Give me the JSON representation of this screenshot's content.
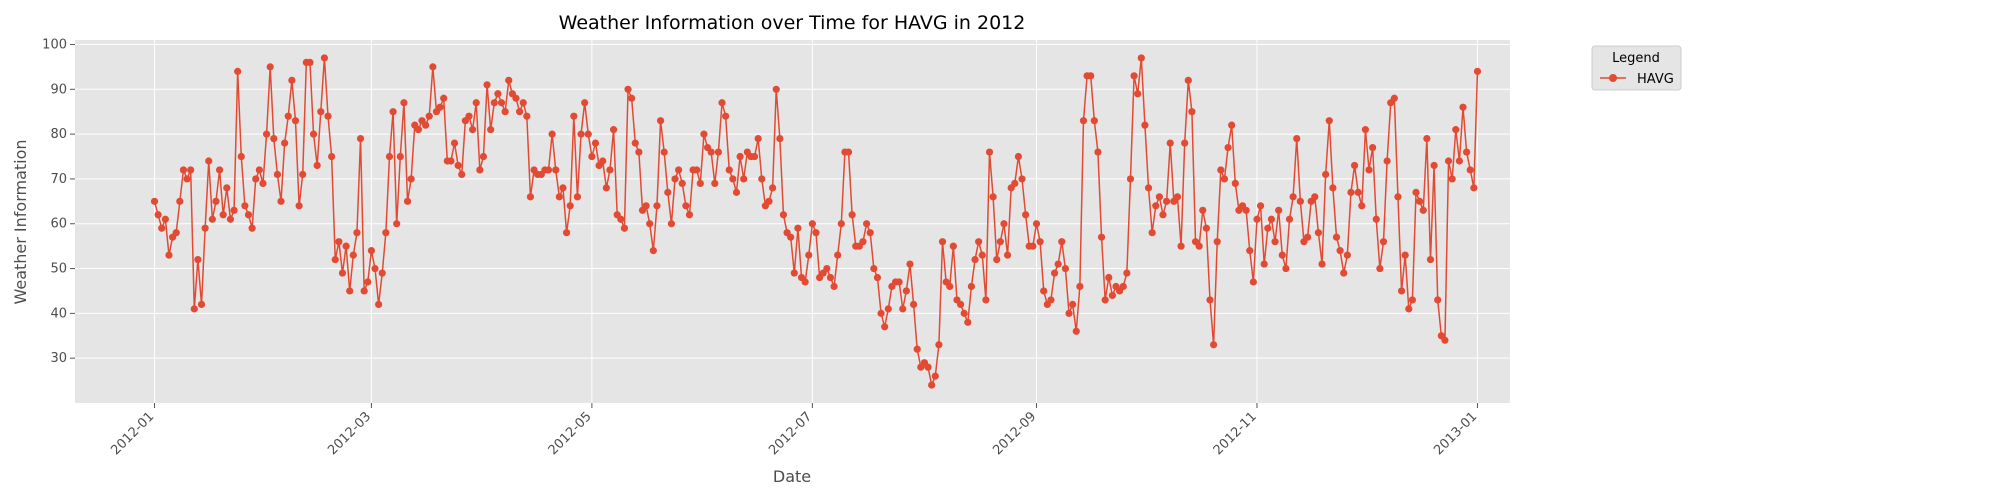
{
  "chart_data": {
    "type": "line",
    "title": "Weather Information over Time for HAVG in 2012",
    "xlabel": "Date",
    "ylabel": "Weather Information",
    "x_range": [
      "2011-12-10",
      "2013-01-10"
    ],
    "ylim": [
      20,
      101
    ],
    "y_ticks": [
      30,
      40,
      50,
      60,
      70,
      80,
      90,
      100
    ],
    "x_ticks": [
      "2012-01-01",
      "2012-03-01",
      "2012-05-01",
      "2012-07-01",
      "2012-09-01",
      "2012-11-01",
      "2013-01-01"
    ],
    "x_tick_labels": [
      "2012-01",
      "2012-03",
      "2012-05",
      "2012-07",
      "2012-09",
      "2012-11",
      "2013-01"
    ],
    "grid": true,
    "background": "#e5e5e5",
    "legend": {
      "title": "Legend",
      "position": "outside-top-right"
    },
    "series": [
      {
        "name": "HAVG",
        "color": "#e24a33",
        "marker": "circle",
        "start_date": "2012-01-01",
        "step_days": 1,
        "values": [
          65,
          62,
          59,
          61,
          53,
          57,
          58,
          65,
          72,
          70,
          72,
          41,
          52,
          42,
          59,
          74,
          61,
          65,
          72,
          62,
          68,
          61,
          63,
          94,
          75,
          64,
          62,
          59,
          70,
          72,
          69,
          80,
          95,
          79,
          71,
          65,
          78,
          84,
          92,
          83,
          64,
          71,
          96,
          96,
          80,
          73,
          85,
          97,
          84,
          75,
          52,
          56,
          49,
          55,
          45,
          53,
          58,
          79,
          45,
          47,
          54,
          50,
          42,
          49,
          58,
          75,
          85,
          60,
          75,
          87,
          65,
          70,
          82,
          81,
          83,
          82,
          84,
          95,
          85,
          86,
          88,
          74,
          74,
          78,
          73,
          71,
          83,
          84,
          81,
          87,
          72,
          75,
          91,
          81,
          87,
          89,
          87,
          85,
          92,
          89,
          88,
          85,
          87,
          84,
          66,
          72,
          71,
          71,
          72,
          72,
          80,
          72,
          66,
          68,
          58,
          64,
          84,
          66,
          80,
          87,
          80,
          75,
          78,
          73,
          74,
          68,
          72,
          81,
          62,
          61,
          59,
          90,
          88,
          78,
          76,
          63,
          64,
          60,
          54,
          64,
          83,
          76,
          67,
          60,
          70,
          72,
          69,
          64,
          62,
          72,
          72,
          69,
          80,
          77,
          76,
          69,
          76,
          87,
          84,
          72,
          70,
          67,
          75,
          70,
          76,
          75,
          75,
          79,
          70,
          64,
          65,
          68,
          90,
          79,
          62,
          58,
          57,
          49,
          59,
          48,
          47,
          53,
          60,
          58,
          48,
          49,
          50,
          48,
          46,
          53,
          60,
          76,
          76,
          62,
          55,
          55,
          56,
          60,
          58,
          50,
          48,
          40,
          37,
          41,
          46,
          47,
          47,
          41,
          45,
          51,
          42,
          32,
          28,
          29,
          28,
          24,
          26,
          33,
          56,
          47,
          46,
          55,
          43,
          42,
          40,
          38,
          46,
          52,
          56,
          53,
          43,
          76,
          66,
          52,
          56,
          60,
          53,
          68,
          69,
          75,
          70,
          62,
          55,
          55,
          60,
          56,
          45,
          42,
          43,
          49,
          51,
          56,
          50,
          40,
          42,
          36,
          46,
          83,
          93,
          93,
          83,
          76,
          57,
          43,
          48,
          44,
          46,
          45,
          46,
          49,
          70,
          93,
          89,
          97,
          82,
          68,
          58,
          64,
          66,
          62,
          65,
          78,
          65,
          66,
          55,
          78,
          92,
          85,
          56,
          55,
          63,
          59,
          43,
          33,
          56,
          72,
          70,
          77,
          82,
          69,
          63,
          64,
          63,
          54,
          47,
          61,
          64,
          51,
          59,
          61,
          56,
          63,
          53,
          50,
          61,
          66,
          79,
          65,
          56,
          57,
          65,
          66,
          58,
          51,
          71,
          83,
          68,
          57,
          54,
          49,
          53,
          67,
          73,
          67,
          64,
          81,
          72,
          77,
          61,
          50,
          56,
          74,
          87,
          88,
          66,
          45,
          53,
          41,
          43,
          67,
          65,
          63,
          79,
          52,
          73,
          43,
          35,
          34,
          74,
          70,
          81,
          74,
          86,
          76,
          72,
          68,
          94
        ]
      }
    ]
  }
}
